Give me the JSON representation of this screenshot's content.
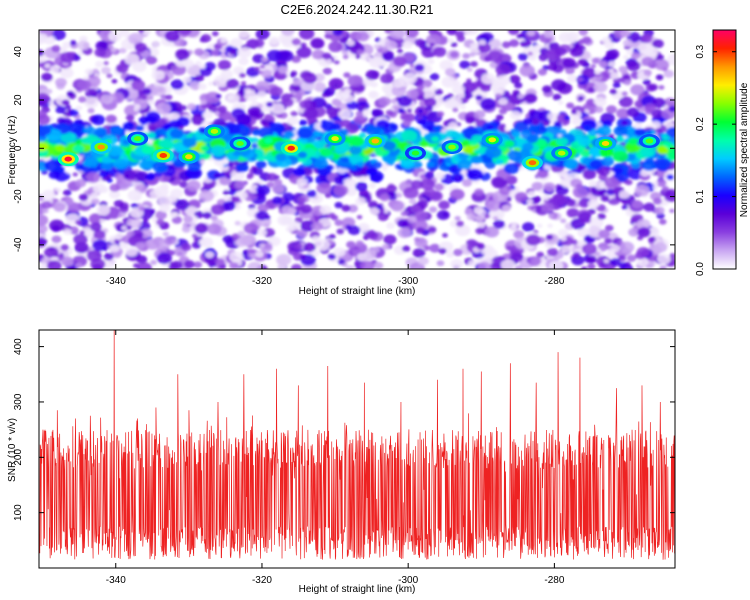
{
  "title": "C2E6.2024.242.11.30.R21",
  "colors": {
    "snr_line": "#ee2222",
    "colormap": [
      "#ffffff",
      "#c9a6f2",
      "#8a3fe0",
      "#5a00d8",
      "#1a00ff",
      "#0066ff",
      "#00ccff",
      "#00ffaa",
      "#00ff33",
      "#88ff00",
      "#ffee00",
      "#ff9900",
      "#ff2200",
      "#ff0066"
    ]
  },
  "chart_data": [
    {
      "type": "heatmap",
      "title": "C2E6.2024.242.11.30.R21",
      "xlabel": "Height of straight line (km)",
      "ylabel": "Frequency (Hz)",
      "xlim": [
        -350.5,
        -263.5
      ],
      "ylim": [
        -50,
        49
      ],
      "x_ticks": [
        -340,
        -320,
        -300,
        -280
      ],
      "y_ticks": [
        -40,
        -20,
        0,
        20,
        40
      ],
      "colorbar": {
        "label": "Normalized spectral amplitude",
        "range": [
          0.0,
          0.33
        ],
        "ticks": [
          0.0,
          0.1,
          0.2,
          0.3
        ],
        "tick_labels": [
          "0.0",
          "0.1",
          "0.2",
          "0.3"
        ]
      },
      "band": {
        "frequency_center_hz": 0,
        "frequency_halfwidth_hz": 10,
        "peak_amplitude": 0.33
      },
      "hotspots": [
        {
          "x": -346.5,
          "y": -4.5,
          "v": 0.32
        },
        {
          "x": -342.0,
          "y": 0.5,
          "v": 0.28
        },
        {
          "x": -337.0,
          "y": 4.0,
          "v": 0.22
        },
        {
          "x": -333.5,
          "y": -3.0,
          "v": 0.3
        },
        {
          "x": -330.0,
          "y": -3.5,
          "v": 0.26
        },
        {
          "x": -326.5,
          "y": 7.0,
          "v": 0.24
        },
        {
          "x": -323.0,
          "y": 2.0,
          "v": 0.22
        },
        {
          "x": -316.0,
          "y": 0.0,
          "v": 0.31
        },
        {
          "x": -310.0,
          "y": 4.0,
          "v": 0.25
        },
        {
          "x": -304.5,
          "y": 3.0,
          "v": 0.27
        },
        {
          "x": -299.0,
          "y": -2.0,
          "v": 0.21
        },
        {
          "x": -294.0,
          "y": 0.5,
          "v": 0.23
        },
        {
          "x": -288.5,
          "y": 3.5,
          "v": 0.25
        },
        {
          "x": -283.0,
          "y": -6.0,
          "v": 0.29
        },
        {
          "x": -279.0,
          "y": -2.0,
          "v": 0.24
        },
        {
          "x": -273.0,
          "y": 2.0,
          "v": 0.26
        },
        {
          "x": -267.0,
          "y": 3.0,
          "v": 0.22
        }
      ]
    },
    {
      "type": "line",
      "xlabel": "Height of straight line (km)",
      "ylabel": "SNR (10 * v/v)",
      "xlim": [
        -350.5,
        -263.5
      ],
      "ylim": [
        0,
        430
      ],
      "x_ticks": [
        -340,
        -320,
        -300,
        -280
      ],
      "y_ticks": [
        100,
        200,
        300,
        400
      ],
      "series": [
        {
          "baseline_low": 50,
          "baseline_high": 200,
          "spikes": [
            {
              "x": -348.0,
              "y": 285
            },
            {
              "x": -345.5,
              "y": 270
            },
            {
              "x": -343.5,
              "y": 275
            },
            {
              "x": -340.2,
              "y": 430
            },
            {
              "x": -337.0,
              "y": 270
            },
            {
              "x": -334.5,
              "y": 290
            },
            {
              "x": -331.5,
              "y": 350
            },
            {
              "x": -330.0,
              "y": 285
            },
            {
              "x": -326.0,
              "y": 300
            },
            {
              "x": -322.5,
              "y": 350
            },
            {
              "x": -318.0,
              "y": 360
            },
            {
              "x": -315.0,
              "y": 330
            },
            {
              "x": -311.0,
              "y": 365
            },
            {
              "x": -306.0,
              "y": 335
            },
            {
              "x": -301.0,
              "y": 300
            },
            {
              "x": -296.0,
              "y": 340
            },
            {
              "x": -292.5,
              "y": 360
            },
            {
              "x": -290.0,
              "y": 355
            },
            {
              "x": -286.0,
              "y": 370
            },
            {
              "x": -282.5,
              "y": 335
            },
            {
              "x": -279.5,
              "y": 390
            },
            {
              "x": -276.5,
              "y": 380
            },
            {
              "x": -271.5,
              "y": 325
            },
            {
              "x": -268.0,
              "y": 330
            },
            {
              "x": -265.5,
              "y": 300
            }
          ]
        }
      ]
    }
  ]
}
